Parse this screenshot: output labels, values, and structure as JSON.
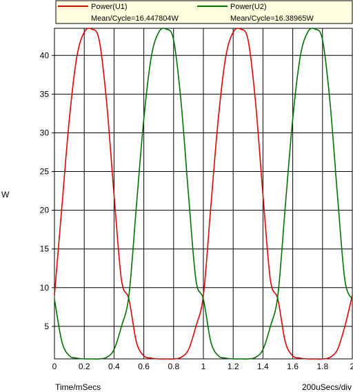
{
  "chart_data": {
    "type": "line",
    "xlabel": "Time/mSecs",
    "ylabel": "W",
    "scale_label": "200uSecs/div",
    "xlim": [
      0,
      2
    ],
    "ylim": [
      0.8,
      43.5
    ],
    "x_ticks": [
      "0",
      "0.2",
      "0.4",
      "0.6",
      "0.8",
      "1",
      "1.2",
      "1.4",
      "1.6",
      "1.8",
      "2"
    ],
    "x_tick_values": [
      0,
      0.2,
      0.4,
      0.6,
      0.8,
      1.0,
      1.2,
      1.4,
      1.6,
      1.8,
      2.0
    ],
    "y_ticks": [
      "5",
      "10",
      "15",
      "20",
      "25",
      "30",
      "35",
      "40"
    ],
    "y_tick_values": [
      5,
      10,
      15,
      20,
      25,
      30,
      35,
      40
    ],
    "grid": true,
    "legend_position": "top",
    "series": [
      {
        "name": "Power(U1)",
        "annotation": "Mean/Cycle=16.447804W",
        "color": "#e00000",
        "x": [
          0,
          0.05,
          0.1,
          0.15,
          0.2,
          0.25,
          0.3,
          0.35,
          0.4,
          0.45,
          0.5,
          0.55,
          0.6,
          0.65,
          0.7,
          0.75,
          0.8,
          0.85,
          0.9,
          0.95,
          1.0,
          1.05,
          1.1,
          1.15,
          1.2,
          1.25,
          1.3,
          1.35,
          1.4,
          1.45,
          1.5,
          1.55,
          1.6,
          1.65,
          1.7,
          1.75,
          1.8,
          1.85,
          1.9,
          1.95,
          2.0
        ],
        "values": [
          9.0,
          20.5,
          31.8,
          39.8,
          43.0,
          43.4,
          42.0,
          34.0,
          22.0,
          11.0,
          8.5,
          3.0,
          1.2,
          0.9,
          0.8,
          0.8,
          0.8,
          1.0,
          2.0,
          5.0,
          9.0,
          20.5,
          31.8,
          39.8,
          43.0,
          43.4,
          42.0,
          34.0,
          22.0,
          11.0,
          8.5,
          3.0,
          1.2,
          0.9,
          0.8,
          0.8,
          0.8,
          1.0,
          2.0,
          5.0,
          9.0
        ]
      },
      {
        "name": "Power(U2)",
        "annotation": "Mean/Cycle=16.38965W",
        "color": "#007000",
        "x": [
          0,
          0.05,
          0.1,
          0.15,
          0.2,
          0.25,
          0.3,
          0.35,
          0.4,
          0.45,
          0.5,
          0.55,
          0.6,
          0.65,
          0.7,
          0.75,
          0.8,
          0.85,
          0.9,
          0.95,
          1.0,
          1.05,
          1.1,
          1.15,
          1.2,
          1.25,
          1.3,
          1.35,
          1.4,
          1.45,
          1.5,
          1.55,
          1.6,
          1.65,
          1.7,
          1.75,
          1.8,
          1.85,
          1.9,
          1.95,
          2.0
        ],
        "values": [
          8.5,
          3.0,
          1.2,
          0.9,
          0.8,
          0.8,
          0.8,
          1.0,
          2.0,
          5.0,
          9.0,
          20.5,
          31.8,
          39.8,
          43.0,
          43.4,
          42.0,
          34.0,
          22.0,
          11.0,
          8.5,
          3.0,
          1.2,
          0.9,
          0.8,
          0.8,
          0.8,
          1.0,
          2.0,
          5.0,
          9.0,
          20.5,
          31.8,
          39.8,
          43.0,
          43.4,
          42.0,
          34.0,
          22.0,
          11.0,
          8.5
        ]
      }
    ]
  }
}
